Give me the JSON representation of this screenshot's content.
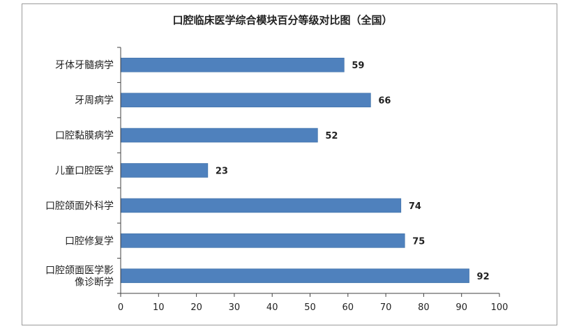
{
  "chart_data": {
    "type": "bar",
    "orientation": "horizontal",
    "title": "口腔临床医学综合模块百分等级对比图（全国）",
    "xlabel": "",
    "ylabel": "",
    "categories": [
      [
        "牙体牙髓病学"
      ],
      [
        "牙周病学"
      ],
      [
        "口腔黏膜病学"
      ],
      [
        "儿童口腔医学"
      ],
      [
        "口腔颌面外科学"
      ],
      [
        "口腔修复学"
      ],
      [
        "口腔颌面医学影",
        "像诊断学"
      ]
    ],
    "values": [
      59,
      66,
      52,
      23,
      74,
      75,
      92
    ],
    "xlim": [
      0,
      100
    ],
    "xticks": [
      "0",
      "10",
      "20",
      "30",
      "40",
      "50",
      "60",
      "70",
      "80",
      "90",
      "100"
    ],
    "grid": false,
    "legend": "none",
    "bar_color": "#4f81bd"
  }
}
